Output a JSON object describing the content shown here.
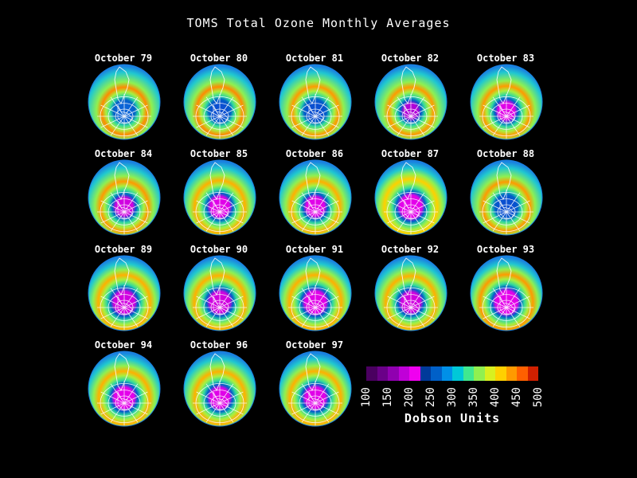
{
  "title": "TOMS Total Ozone Monthly Averages",
  "panels": [
    {
      "label": "October 79",
      "hole": 0.3,
      "holeColor": "#0b64d6",
      "ring": "#ff8a00"
    },
    {
      "label": "October 80",
      "hole": 0.32,
      "holeColor": "#0a4fd0",
      "ring": "#ff8a00"
    },
    {
      "label": "October 81",
      "hole": 0.33,
      "holeColor": "#0a4fd0",
      "ring": "#ff9a00"
    },
    {
      "label": "October 82",
      "hole": 0.3,
      "holeColor": "#b000d8",
      "ring": "#ff9a00"
    },
    {
      "label": "October 83",
      "hole": 0.35,
      "holeColor": "#e000e8",
      "ring": "#ff9a00"
    },
    {
      "label": "October 84",
      "hole": 0.36,
      "holeColor": "#d000e0",
      "ring": "#ff9a00"
    },
    {
      "label": "October 85",
      "hole": 0.4,
      "holeColor": "#e000e8",
      "ring": "#ffb000"
    },
    {
      "label": "October 86",
      "hole": 0.38,
      "holeColor": "#e000e8",
      "ring": "#ffb000"
    },
    {
      "label": "October 87",
      "hole": 0.46,
      "holeColor": "#e400ea",
      "ring": "#ffd000"
    },
    {
      "label": "October 88",
      "hole": 0.34,
      "holeColor": "#0a4fd0",
      "ring": "#ff9a00"
    },
    {
      "label": "October 89",
      "hole": 0.44,
      "holeColor": "#d000e0",
      "ring": "#ffb000"
    },
    {
      "label": "October 90",
      "hole": 0.42,
      "holeColor": "#d000e0",
      "ring": "#ffb000"
    },
    {
      "label": "October 91",
      "hole": 0.44,
      "holeColor": "#e000e8",
      "ring": "#ffb000"
    },
    {
      "label": "October 92",
      "hole": 0.4,
      "holeColor": "#d000e0",
      "ring": "#ffb000"
    },
    {
      "label": "October 93",
      "hole": 0.46,
      "holeColor": "#e400ea",
      "ring": "#ff9a00"
    },
    {
      "label": "October 94",
      "hole": 0.42,
      "holeColor": "#e400ea",
      "ring": "#ffb000"
    },
    {
      "label": "October 96",
      "hole": 0.4,
      "holeColor": "#e000e8",
      "ring": "#ffb000"
    },
    {
      "label": "October 97",
      "hole": 0.42,
      "holeColor": "#e000e8",
      "ring": "#ffb000"
    }
  ],
  "legend": {
    "title": "Dobson Units",
    "ticks": [
      "100",
      "150",
      "200",
      "250",
      "300",
      "350",
      "400",
      "450",
      "500"
    ],
    "colors": [
      "#4a0060",
      "#6a0088",
      "#9000b0",
      "#c000d8",
      "#f000f0",
      "#003a9a",
      "#0060c8",
      "#0090e8",
      "#00c8d8",
      "#40e890",
      "#90f050",
      "#d8f020",
      "#ffd000",
      "#ff9a00",
      "#ff6000",
      "#d02000"
    ]
  }
}
